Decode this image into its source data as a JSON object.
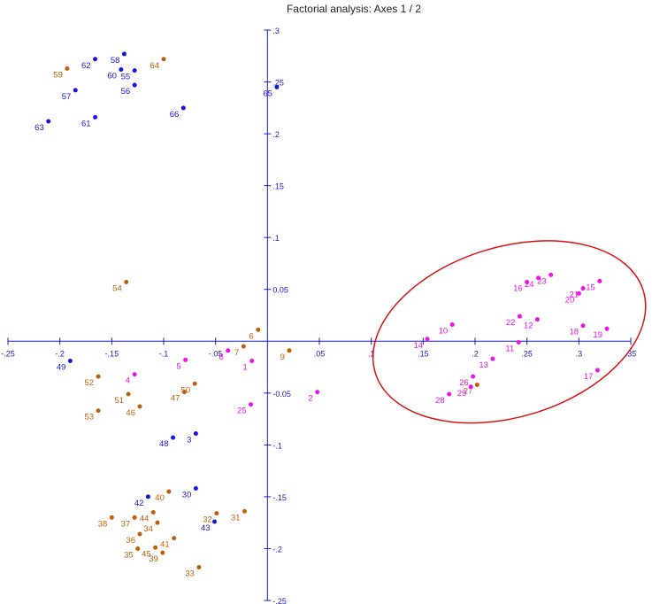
{
  "chart_data": {
    "type": "scatter",
    "title": "Factorial analysis: Axes 1 / 2",
    "xlabel": "",
    "ylabel": "",
    "xlim": [
      -0.25,
      0.35
    ],
    "ylim": [
      -0.25,
      0.3
    ],
    "x_ticks": [
      {
        "value": -0.25,
        "label": "-.25"
      },
      {
        "value": -0.2,
        "label": "-.2"
      },
      {
        "value": -0.15,
        "label": "-.15"
      },
      {
        "value": -0.1,
        "label": "-.1"
      },
      {
        "value": -0.05,
        "label": "-.05"
      },
      {
        "value": 0.05,
        "label": ".05"
      },
      {
        "value": 0.1,
        "label": ".1"
      },
      {
        "value": 0.15,
        "label": ".15"
      },
      {
        "value": 0.2,
        "label": ".2"
      },
      {
        "value": 0.25,
        "label": ".25"
      },
      {
        "value": 0.3,
        "label": ".3"
      },
      {
        "value": 0.35,
        "label": ".35"
      }
    ],
    "y_ticks": [
      {
        "value": 0.3,
        "label": ".3"
      },
      {
        "value": 0.25,
        "label": ".25"
      },
      {
        "value": 0.2,
        "label": ".2"
      },
      {
        "value": 0.15,
        "label": ".15"
      },
      {
        "value": 0.1,
        "label": ".1"
      },
      {
        "value": 0.05,
        "label": "0.05"
      },
      {
        "value": -0.05,
        "label": "-0.05"
      },
      {
        "value": -0.1,
        "label": "-.1"
      },
      {
        "value": -0.15,
        "label": "-.15"
      },
      {
        "value": -0.2,
        "label": "-.2"
      },
      {
        "value": -0.25,
        "label": "-.25"
      }
    ],
    "grid": false,
    "colors": {
      "axis": "#1a1acc",
      "blue": "#1515dd",
      "orange": "#c0600a",
      "magenta": "#ee11ee",
      "ellipse": "#dd1111"
    },
    "series": [
      {
        "color": "blue",
        "points": [
          {
            "label": "62",
            "x": -0.166,
            "y": 0.272
          },
          {
            "label": "58",
            "x": -0.138,
            "y": 0.277
          },
          {
            "label": "60",
            "x": -0.141,
            "y": 0.262
          },
          {
            "label": "55",
            "x": -0.128,
            "y": 0.261
          },
          {
            "label": "56",
            "x": -0.128,
            "y": 0.247
          },
          {
            "label": "57",
            "x": -0.185,
            "y": 0.242
          },
          {
            "label": "61",
            "x": -0.166,
            "y": 0.216
          },
          {
            "label": "63",
            "x": -0.211,
            "y": 0.212
          },
          {
            "label": "66",
            "x": -0.081,
            "y": 0.225
          },
          {
            "label": "65",
            "x": 0.009,
            "y": 0.245
          },
          {
            "label": "49",
            "x": -0.19,
            "y": -0.019
          },
          {
            "label": "48",
            "x": -0.091,
            "y": -0.093
          },
          {
            "label": "3",
            "x": -0.069,
            "y": -0.089
          },
          {
            "label": "30",
            "x": -0.069,
            "y": -0.142
          },
          {
            "label": "42",
            "x": -0.115,
            "y": -0.15
          },
          {
            "label": "43",
            "x": -0.051,
            "y": -0.174
          }
        ]
      },
      {
        "color": "orange",
        "points": [
          {
            "label": "59",
            "x": -0.193,
            "y": 0.263
          },
          {
            "label": "64",
            "x": -0.1,
            "y": 0.272
          },
          {
            "label": "54",
            "x": -0.136,
            "y": 0.057
          },
          {
            "label": "6",
            "x": -0.009,
            "y": 0.011
          },
          {
            "label": "7",
            "x": -0.023,
            "y": -0.005
          },
          {
            "label": "9",
            "x": 0.021,
            "y": -0.009
          },
          {
            "label": "52",
            "x": -0.163,
            "y": -0.034
          },
          {
            "label": "51",
            "x": -0.134,
            "y": -0.051
          },
          {
            "label": "53",
            "x": -0.163,
            "y": -0.067
          },
          {
            "label": "46",
            "x": -0.123,
            "y": -0.063
          },
          {
            "label": "47",
            "x": -0.08,
            "y": -0.049
          },
          {
            "label": "50",
            "x": -0.07,
            "y": -0.041
          },
          {
            "label": "40",
            "x": -0.095,
            "y": -0.145
          },
          {
            "label": "38",
            "x": -0.15,
            "y": -0.17
          },
          {
            "label": "37",
            "x": -0.128,
            "y": -0.17
          },
          {
            "label": "44",
            "x": -0.11,
            "y": -0.165
          },
          {
            "label": "34",
            "x": -0.106,
            "y": -0.175
          },
          {
            "label": "32",
            "x": -0.049,
            "y": -0.166
          },
          {
            "label": "31",
            "x": -0.022,
            "y": -0.164
          },
          {
            "label": "36",
            "x": -0.123,
            "y": -0.186
          },
          {
            "label": "41",
            "x": -0.09,
            "y": -0.19
          },
          {
            "label": "35",
            "x": -0.125,
            "y": -0.2
          },
          {
            "label": "45",
            "x": -0.108,
            "y": -0.199
          },
          {
            "label": "39",
            "x": -0.101,
            "y": -0.204
          },
          {
            "label": "33",
            "x": -0.066,
            "y": -0.218
          },
          {
            "label": "27",
            "x": 0.202,
            "y": -0.042
          }
        ]
      },
      {
        "color": "magenta",
        "points": [
          {
            "label": "16",
            "x": 0.25,
            "y": 0.057
          },
          {
            "label": "24",
            "x": 0.261,
            "y": 0.061
          },
          {
            "label": "23",
            "x": 0.273,
            "y": 0.064
          },
          {
            "label": "15",
            "x": 0.32,
            "y": 0.058
          },
          {
            "label": "21",
            "x": 0.304,
            "y": 0.051
          },
          {
            "label": "20",
            "x": 0.3,
            "y": 0.046
          },
          {
            "label": "22",
            "x": 0.243,
            "y": 0.024
          },
          {
            "label": "12",
            "x": 0.26,
            "y": 0.021
          },
          {
            "label": "10",
            "x": 0.178,
            "y": 0.016
          },
          {
            "label": "18",
            "x": 0.304,
            "y": 0.015
          },
          {
            "label": "19",
            "x": 0.327,
            "y": 0.012
          },
          {
            "label": "14",
            "x": 0.154,
            "y": 0.002
          },
          {
            "label": "11",
            "x": 0.242,
            "y": -0.001
          },
          {
            "label": "13",
            "x": 0.217,
            "y": -0.017
          },
          {
            "label": "17",
            "x": 0.318,
            "y": -0.028
          },
          {
            "label": "26",
            "x": 0.198,
            "y": -0.034
          },
          {
            "label": "29",
            "x": 0.196,
            "y": -0.044
          },
          {
            "label": "28",
            "x": 0.175,
            "y": -0.051
          },
          {
            "label": "8",
            "x": -0.038,
            "y": -0.009
          },
          {
            "label": "5",
            "x": -0.079,
            "y": -0.018
          },
          {
            "label": "4",
            "x": -0.128,
            "y": -0.032
          },
          {
            "label": "1",
            "x": -0.015,
            "y": -0.019
          },
          {
            "label": "25",
            "x": -0.016,
            "y": -0.061
          },
          {
            "label": "2",
            "x": 0.048,
            "y": -0.049
          }
        ]
      }
    ],
    "annotations": [
      {
        "type": "ellipse",
        "color": "ellipse",
        "center": [
          0.233,
          0.009
        ],
        "rx": 0.135,
        "ry": 0.082,
        "rotation_deg": -17
      }
    ]
  }
}
